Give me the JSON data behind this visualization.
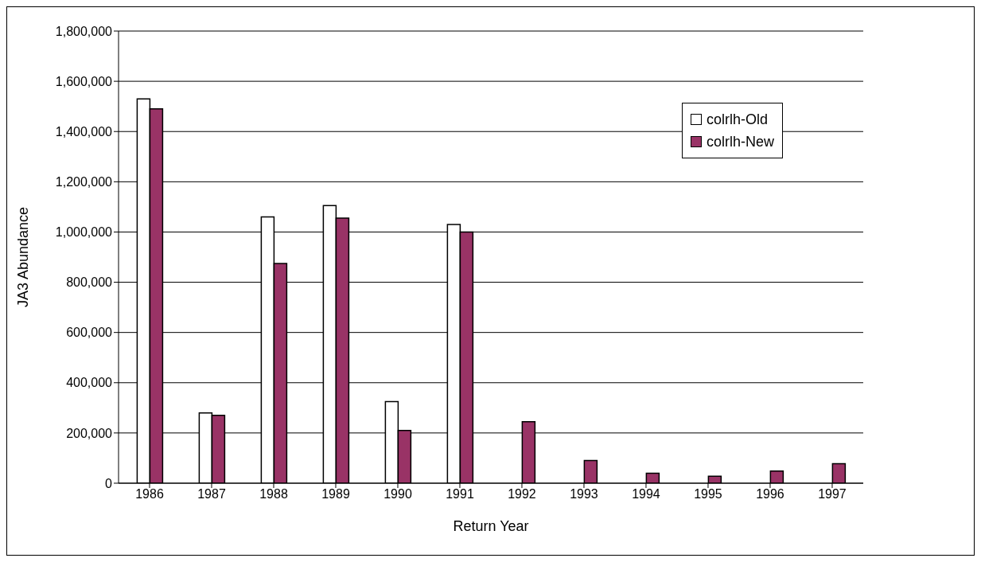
{
  "chart_data": {
    "type": "bar",
    "xlabel": "Return Year",
    "ylabel": "JA3 Abundance",
    "categories": [
      "1986",
      "1987",
      "1988",
      "1989",
      "1990",
      "1991",
      "1992",
      "1993",
      "1994",
      "1995",
      "1996",
      "1997"
    ],
    "series": [
      {
        "name": "colrlh-Old",
        "color": "#ffffff",
        "values": [
          1530000,
          280000,
          1060000,
          1105000,
          325000,
          1030000,
          null,
          null,
          null,
          null,
          null,
          null
        ]
      },
      {
        "name": "colrlh-New",
        "color": "#993366",
        "values": [
          1490000,
          270000,
          875000,
          1055000,
          210000,
          1000000,
          245000,
          90000,
          40000,
          28000,
          48000,
          78000
        ]
      }
    ],
    "ylim": [
      0,
      1800000
    ],
    "yticks": [
      0,
      {
        "value": 200000,
        "label": "200,000"
      },
      {
        "value": 400000,
        "label": "400,000"
      },
      {
        "value": 600000,
        "label": "600,000"
      },
      {
        "value": 800000,
        "label": "800,000"
      },
      {
        "value": 1000000,
        "label": "1,000,000"
      },
      {
        "value": 1200000,
        "label": "1,200,000"
      },
      {
        "value": 1400000,
        "label": "1,400,000"
      },
      {
        "value": 1600000,
        "label": "1,600,000"
      },
      {
        "value": 1800000,
        "label": "1,800,000"
      }
    ],
    "grid": "y",
    "legend": "top right"
  }
}
